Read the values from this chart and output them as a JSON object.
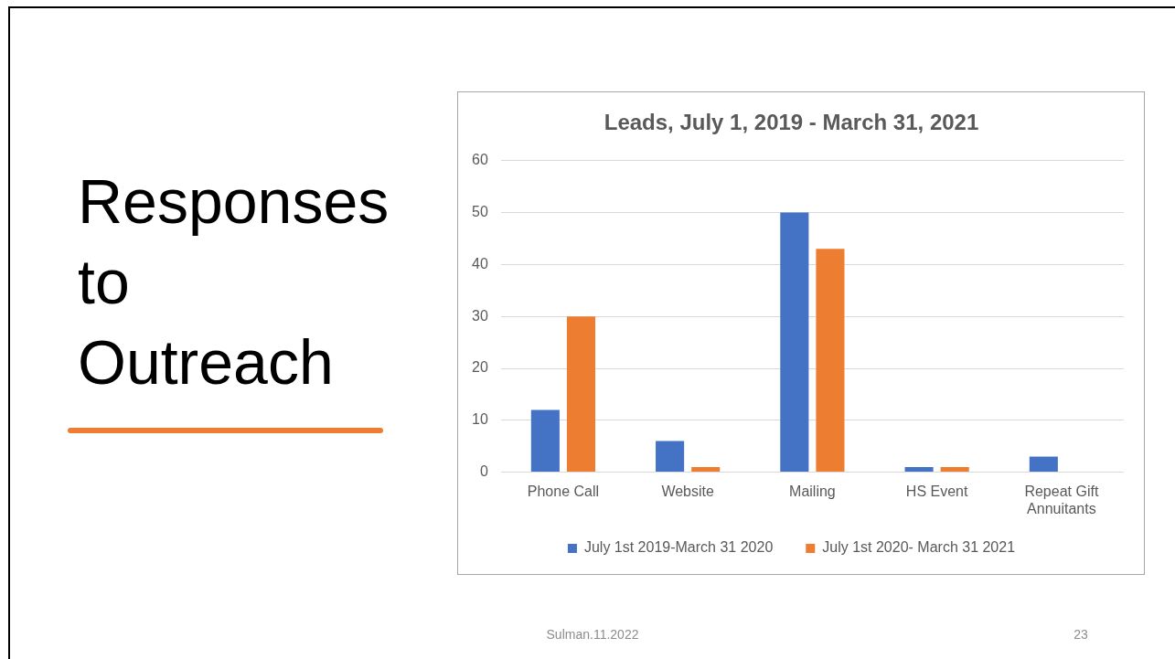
{
  "chart_data": {
    "type": "bar",
    "title": "Responses to Outreach",
    "subtitle": "Leads, July 1, 2019 - March 31, 2021",
    "categories": [
      "Phone Call",
      "Website",
      "Mailing",
      "HS Event",
      "Repeat Gift Annuitants"
    ],
    "series": [
      {
        "name": "July 1st 2019-March 31 2020",
        "color": "#4472c4",
        "values": [
          12,
          6,
          50,
          1,
          3
        ]
      },
      {
        "name": "July 1st 2020- March 31 2021",
        "color": "#ed7d31",
        "values": [
          30,
          1,
          43,
          1,
          0
        ]
      }
    ],
    "ylim": [
      0,
      60
    ],
    "yticks": [
      0,
      10,
      20,
      30,
      40,
      50,
      60
    ],
    "grid": "y",
    "legend": "bottom",
    "annotations": [
      "Sulman.11.2022",
      "23"
    ]
  }
}
